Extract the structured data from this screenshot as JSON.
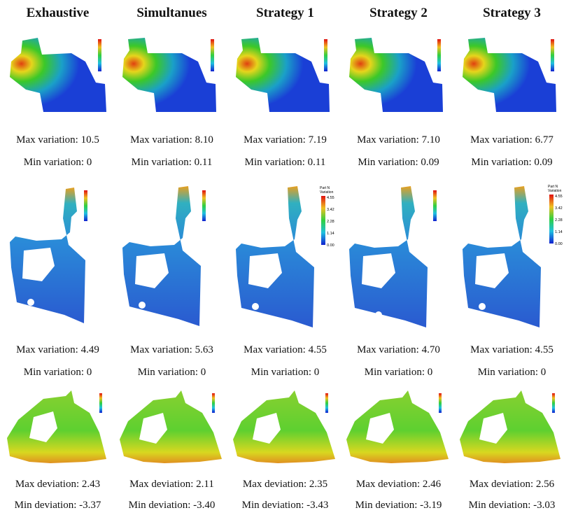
{
  "columns": [
    {
      "header": "Exhaustive",
      "rows": [
        {
          "max": "Max variation: 10.5",
          "min": "Min variation: 0"
        },
        {
          "max": "Max variation: 4.49",
          "min": "Min variation: 0"
        },
        {
          "max": "Max deviation: 2.43",
          "min": "Min deviation: -3.37"
        }
      ]
    },
    {
      "header": "Simultanues",
      "rows": [
        {
          "max": "Max variation: 8.10",
          "min": "Min variation: 0.11"
        },
        {
          "max": "Max variation: 5.63",
          "min": "Min variation: 0"
        },
        {
          "max": "Max  deviation: 2.11",
          "min": "Min  deviation: -3.40"
        }
      ]
    },
    {
      "header": "Strategy 1",
      "rows": [
        {
          "max": "Max variation: 7.19",
          "min": "Min variation: 0.11"
        },
        {
          "max": "Max variation: 4.55",
          "min": "Min variation: 0"
        },
        {
          "max": "Max  deviation: 2.35",
          "min": "Min  deviation: -3.43"
        }
      ]
    },
    {
      "header": "Strategy 2",
      "rows": [
        {
          "max": "Max variation: 7.10",
          "min": "Min variation: 0.09"
        },
        {
          "max": "Max variation: 4.70",
          "min": "Min variation: 0"
        },
        {
          "max": "Max  deviation: 2.46",
          "min": "Min  deviation: -3.19"
        }
      ]
    },
    {
      "header": "Strategy 3",
      "rows": [
        {
          "max": "Max variation: 6.77",
          "min": "Min variation: 0.09"
        },
        {
          "max": "Max variation: 4.55",
          "min": "Min variation: 0"
        },
        {
          "max": "Max  deviation: 2.56",
          "min": "Min  deviation: -3.03"
        }
      ]
    }
  ],
  "colorbar_labels": {
    "row2_col3": {
      "title1": "Part N",
      "title2": "Variation",
      "ticks": [
        "4.55",
        "3.42",
        "2.28",
        "1.14",
        "0.00"
      ]
    },
    "row2_col5": {
      "title1": "Part N",
      "title2": "Variation",
      "ticks": [
        "4.55",
        "3.42",
        "2.28",
        "1.14",
        "0.00"
      ]
    }
  },
  "colors": {
    "blue_part": "#1a3fd6",
    "deep_blue": "#0a1fb0",
    "green": "#3cc828",
    "yellow": "#e6d51c",
    "red": "#e02a10"
  }
}
